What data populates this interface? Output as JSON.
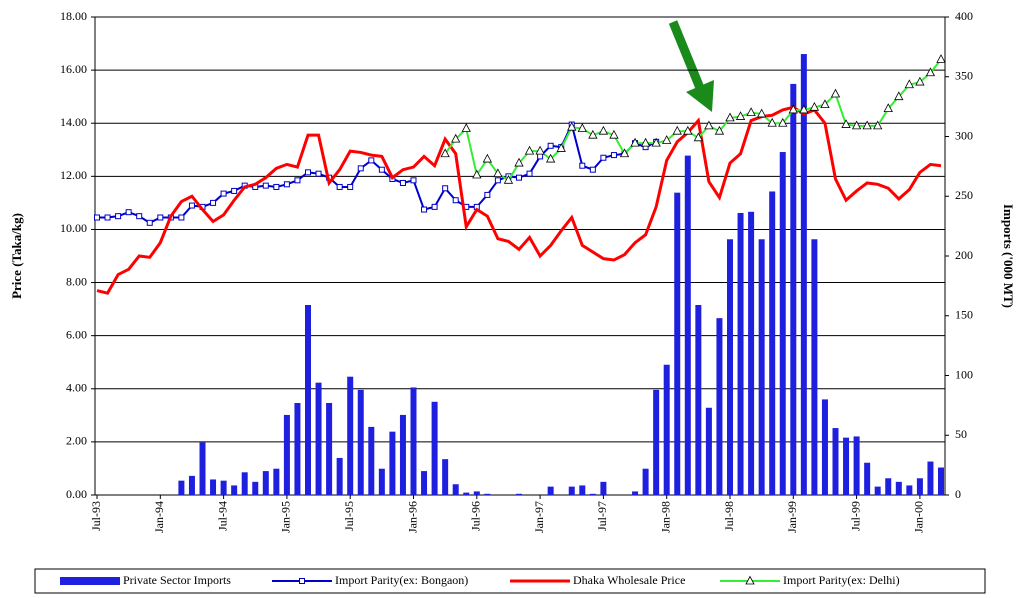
{
  "chart_data": {
    "type": "bar-line",
    "y_label": "Price (Taka/kg)",
    "y2_label": "Imports ('000 MT)",
    "categories": [
      "Jul-93",
      null,
      null,
      null,
      null,
      null,
      "Jan-94",
      null,
      null,
      null,
      null,
      null,
      "Jul-94",
      null,
      null,
      null,
      null,
      null,
      "Jan-95",
      null,
      null,
      null,
      null,
      null,
      "Jul-95",
      null,
      null,
      null,
      null,
      null,
      "Jan-96",
      null,
      null,
      null,
      null,
      null,
      "Jul-96",
      null,
      null,
      null,
      null,
      null,
      "Jan-97",
      null,
      null,
      null,
      null,
      null,
      "Jul-97",
      null,
      null,
      null,
      null,
      null,
      "Jan-98",
      null,
      null,
      null,
      null,
      null,
      "Jul-98",
      null,
      null,
      null,
      null,
      null,
      "Jan-99",
      null,
      null,
      null,
      null,
      null,
      "Jul-99",
      null,
      null,
      null,
      null,
      null,
      "Jan-00",
      null,
      null
    ],
    "ylim": [
      0,
      18
    ],
    "yticks": [
      {
        "value": 0,
        "label": "0.00"
      },
      {
        "value": 2,
        "label": "2.00"
      },
      {
        "value": 4,
        "label": "4.00"
      },
      {
        "value": 6,
        "label": "6.00"
      },
      {
        "value": 8,
        "label": "8.00"
      },
      {
        "value": 10,
        "label": "10.00"
      },
      {
        "value": 12,
        "label": "12.00"
      },
      {
        "value": 14,
        "label": "14.00"
      },
      {
        "value": 16,
        "label": "16.00"
      },
      {
        "value": 18,
        "label": "18.00"
      }
    ],
    "y2lim": [
      0,
      400
    ],
    "y2ticks": [
      0,
      50,
      100,
      150,
      200,
      250,
      300,
      350,
      400
    ],
    "grid": true,
    "series": [
      {
        "name": "Private Sector Imports",
        "type": "bar",
        "axis": "y2",
        "color": "#1f1fe0",
        "marker": "none",
        "values": [
          0,
          0,
          0,
          0,
          0,
          0,
          0,
          0,
          12,
          16,
          44,
          13,
          12,
          8,
          19,
          11,
          20,
          22,
          67,
          77,
          159,
          94,
          77,
          31,
          99,
          88,
          57,
          22,
          53,
          67,
          90,
          20,
          78,
          30,
          9,
          2,
          3,
          1,
          0,
          0,
          1,
          0,
          0,
          7,
          0,
          7,
          8,
          1,
          11,
          0,
          0,
          3,
          22,
          88,
          109,
          253,
          284,
          159,
          73,
          148,
          214,
          236,
          237,
          214,
          254,
          287,
          344,
          369,
          214,
          80,
          56,
          48,
          49,
          27,
          7,
          14,
          11,
          8,
          14,
          28,
          23
        ]
      },
      {
        "name": "Import Parity(ex: Bongaon)",
        "type": "line",
        "axis": "y",
        "color": "#0000cc",
        "marker": "square",
        "values": [
          10.45,
          10.45,
          10.5,
          10.65,
          10.5,
          10.25,
          10.45,
          10.45,
          10.45,
          10.9,
          10.85,
          11.0,
          11.35,
          11.45,
          11.65,
          11.6,
          11.65,
          11.6,
          11.7,
          11.85,
          12.15,
          12.1,
          11.95,
          11.6,
          11.6,
          12.3,
          12.6,
          12.25,
          11.9,
          11.75,
          11.85,
          10.75,
          10.85,
          11.55,
          11.1,
          10.85,
          10.85,
          11.3,
          11.85,
          12.0,
          11.95,
          12.1,
          12.75,
          13.15,
          13.1,
          13.95,
          12.4,
          12.25,
          12.7,
          12.8,
          12.85,
          13.25,
          13.1,
          13.3,
          null,
          null,
          null,
          null,
          null,
          null,
          null,
          null,
          null,
          null,
          null,
          null,
          null,
          null,
          null,
          null,
          null,
          null,
          null,
          null,
          null,
          null,
          null,
          null,
          null,
          null,
          null
        ]
      },
      {
        "name": "Dhaka Wholesale Price",
        "type": "line",
        "axis": "y",
        "color": "#ff0000",
        "marker": "none",
        "values": [
          7.7,
          7.6,
          8.3,
          8.5,
          9.0,
          8.95,
          9.5,
          10.5,
          11.05,
          11.25,
          10.75,
          10.3,
          10.55,
          11.1,
          11.6,
          11.7,
          11.95,
          12.3,
          12.45,
          12.35,
          13.55,
          13.55,
          11.75,
          12.25,
          12.95,
          12.9,
          12.8,
          12.75,
          11.95,
          12.25,
          12.35,
          12.75,
          12.4,
          13.4,
          12.85,
          10.1,
          10.75,
          10.5,
          9.65,
          9.55,
          9.25,
          9.7,
          9.0,
          9.4,
          9.95,
          10.45,
          9.4,
          9.15,
          8.9,
          8.85,
          9.05,
          9.5,
          9.8,
          10.85,
          12.6,
          13.3,
          13.65,
          14.1,
          11.8,
          11.2,
          12.5,
          12.85,
          14.1,
          14.25,
          14.3,
          14.5,
          14.6,
          14.35,
          14.5,
          14.0,
          11.9,
          11.1,
          11.45,
          11.75,
          11.7,
          11.55,
          11.15,
          11.5,
          12.15,
          12.45,
          12.4
        ]
      },
      {
        "name": "Import Parity(ex: Delhi)",
        "type": "line",
        "axis": "y",
        "color": "#33ee33",
        "marker": "triangle",
        "values": [
          null,
          null,
          null,
          null,
          null,
          null,
          null,
          null,
          null,
          null,
          null,
          null,
          null,
          null,
          null,
          null,
          null,
          null,
          null,
          null,
          null,
          null,
          null,
          null,
          null,
          null,
          null,
          null,
          null,
          null,
          null,
          null,
          null,
          12.85,
          13.4,
          13.8,
          12.05,
          12.65,
          12.1,
          11.85,
          12.5,
          12.95,
          12.95,
          12.65,
          13.05,
          13.85,
          13.8,
          13.55,
          13.7,
          13.55,
          12.85,
          13.25,
          13.25,
          13.25,
          13.35,
          13.7,
          13.7,
          13.45,
          13.9,
          13.7,
          14.2,
          14.25,
          14.4,
          14.35,
          14.0,
          14.0,
          14.5,
          14.5,
          14.6,
          14.7,
          15.1,
          13.95,
          13.9,
          13.9,
          13.9,
          14.55,
          15.0,
          15.45,
          15.55,
          15.9,
          16.4
        ]
      }
    ]
  }
}
